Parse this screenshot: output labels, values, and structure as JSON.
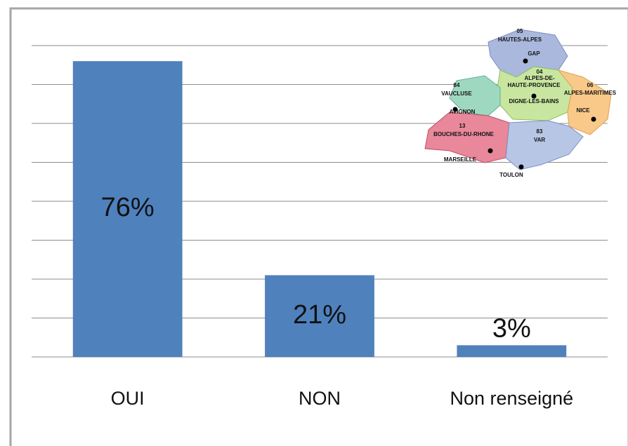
{
  "chart_data": {
    "type": "bar",
    "categories": [
      "OUI",
      "NON",
      "Non renseigné"
    ],
    "values": [
      76,
      21,
      3
    ],
    "value_labels": [
      "76%",
      "21%",
      "3%"
    ],
    "color": "#4f81bd",
    "ylim": [
      0,
      80
    ],
    "yticks": [
      0,
      10,
      20,
      30,
      40,
      50,
      60,
      70,
      80
    ],
    "grid": true
  },
  "inset_map": {
    "labels": [
      "05",
      "HAUTES-ALPES",
      "GAP",
      "04",
      "ALPES-DE-",
      "HAUTE-PROVENCE",
      "06",
      "ALPES-MARITIMES",
      "84",
      "VAUCLUSE",
      "DIGNE-LES-BAINS",
      "AVIGNON",
      "NICE",
      "13",
      "BOUCHES-DU-RHONE",
      "83",
      "VAR",
      "MARSEILLE",
      "TOULON"
    ]
  }
}
